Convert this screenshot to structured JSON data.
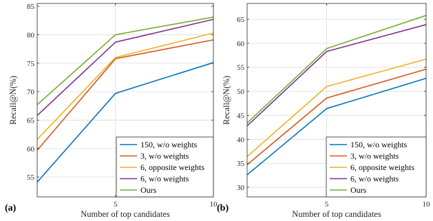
{
  "chart_data": [
    {
      "type": "line",
      "panel_label": "(a)",
      "xlabel": "Number of top candidates",
      "ylabel": "Recall@N(%)",
      "x": [
        1,
        5,
        10
      ],
      "xticks": [
        "5",
        "10"
      ],
      "xtick_values": [
        5,
        10
      ],
      "ylim": [
        51.5,
        85.5
      ],
      "yticks": [
        55,
        60,
        65,
        70,
        75,
        80,
        85
      ],
      "grid": true,
      "legend_position": "bottom-right",
      "series": [
        {
          "name": "150, w/o weights",
          "color": "#0072BD",
          "values": [
            54.1,
            69.7,
            75.1
          ]
        },
        {
          "name": "3, w/o weights",
          "color": "#D95319",
          "values": [
            59.7,
            75.8,
            79.1
          ]
        },
        {
          "name": "6, opposite weights",
          "color": "#EDB120",
          "values": [
            61.6,
            76.0,
            80.3
          ]
        },
        {
          "name": "6, w/o weights",
          "color": "#7E2F8E",
          "values": [
            65.8,
            78.7,
            82.7
          ]
        },
        {
          "name": "Ours",
          "color": "#77AC30",
          "values": [
            67.7,
            80.0,
            83.1
          ]
        }
      ]
    },
    {
      "type": "line",
      "panel_label": "(b)",
      "xlabel": "Number of top candidates",
      "ylabel": "Recall@N(%)",
      "x": [
        1,
        5,
        10
      ],
      "xticks": [
        "5",
        "10"
      ],
      "xtick_values": [
        5,
        10
      ],
      "ylim": [
        28,
        68.3
      ],
      "yticks": [
        30,
        35,
        40,
        45,
        50,
        55,
        60,
        65
      ],
      "grid": true,
      "legend_position": "bottom-right",
      "series": [
        {
          "name": "150, w/o weights",
          "color": "#0072BD",
          "values": [
            32.6,
            46.4,
            52.7
          ]
        },
        {
          "name": "3, w/o weights",
          "color": "#D95319",
          "values": [
            34.7,
            48.6,
            54.6
          ]
        },
        {
          "name": "6, opposite weights",
          "color": "#EDB120",
          "values": [
            36.4,
            51.0,
            56.7
          ]
        },
        {
          "name": "6, w/o weights",
          "color": "#7E2F8E",
          "values": [
            42.8,
            58.3,
            63.9
          ]
        },
        {
          "name": "Ours",
          "color": "#77AC30",
          "values": [
            43.4,
            58.9,
            65.8
          ]
        }
      ]
    }
  ]
}
